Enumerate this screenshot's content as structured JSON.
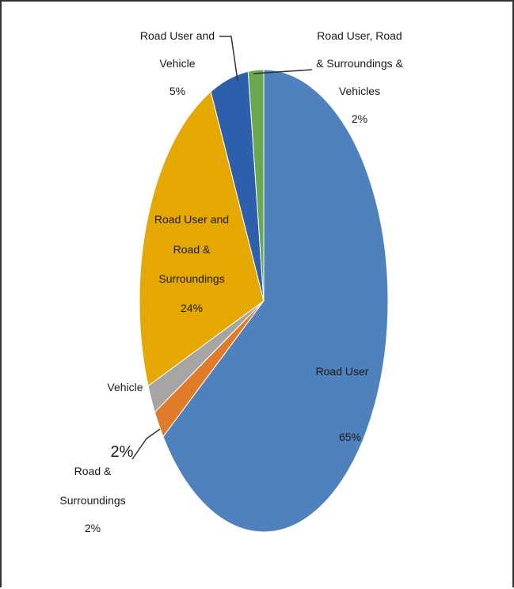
{
  "chart_data": {
    "type": "pie",
    "title": "",
    "slices": [
      {
        "label_lines": [
          "Road User"
        ],
        "value_text": "65%",
        "value": 65,
        "color": "#4f81bd"
      },
      {
        "label_lines": [
          "Road &",
          "Surroundings"
        ],
        "value_text": "2%",
        "value": 2,
        "color": "#e07b2a"
      },
      {
        "label_lines": [
          "Vehicle"
        ],
        "value_text": "",
        "value": 2,
        "color": "#a5a5a5"
      },
      {
        "label_lines": [
          "Road User and",
          "Road &",
          "Surroundings"
        ],
        "value_text": "24%",
        "value": 24,
        "color": "#e5a800"
      },
      {
        "label_lines": [
          "Road User and",
          "Vehicle"
        ],
        "value_text": "5%",
        "value": 5,
        "color": "#2e5fad"
      },
      {
        "label_lines": [
          "Road User, Road",
          "& Surroundings  &",
          "Vehicles"
        ],
        "value_text": "2%",
        "value": 2,
        "color": "#6aa84f"
      }
    ],
    "extra_annotations": [
      "2%"
    ]
  }
}
